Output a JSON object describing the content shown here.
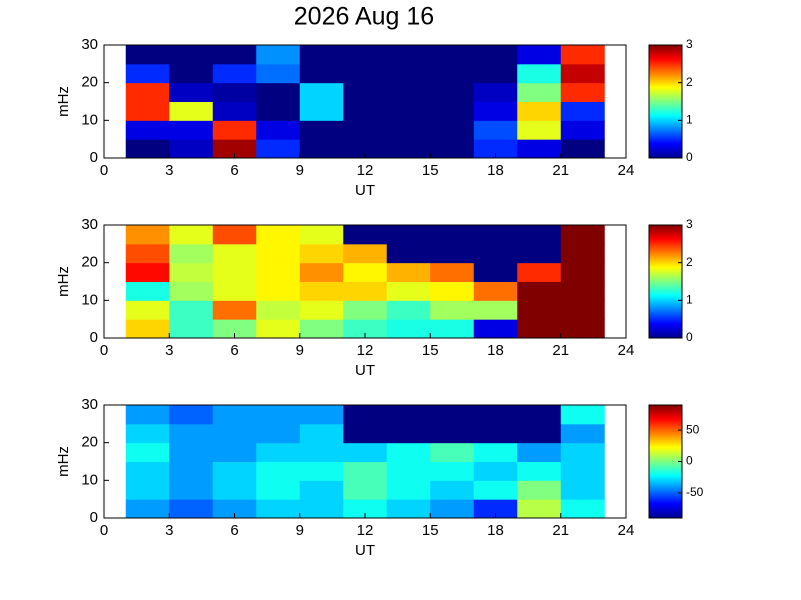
{
  "chart_data": [
    {
      "type": "heatmap",
      "title": "2026 Aug 16",
      "xlabel": "UT",
      "ylabel": "mHz",
      "xlim": [
        0,
        24
      ],
      "xticks": [
        0,
        3,
        6,
        9,
        12,
        15,
        18,
        21,
        24
      ],
      "ylim": [
        0,
        30
      ],
      "yticks": [
        0,
        10,
        20,
        30
      ],
      "clim": [
        0,
        3
      ],
      "cticks": [
        0,
        1,
        2,
        3
      ],
      "xbins": [
        1,
        3,
        5,
        7,
        9,
        11,
        13,
        15,
        17,
        19,
        21,
        23
      ],
      "ybins": [
        0,
        5,
        10,
        15,
        20,
        25,
        30
      ],
      "z": [
        [
          0,
          0.2,
          2.9,
          0.5,
          0,
          0,
          0,
          0,
          0.5,
          0.3,
          0
        ],
        [
          0.3,
          0.3,
          2.5,
          0.3,
          0,
          0,
          0,
          0,
          0.6,
          1.8,
          0.3
        ],
        [
          2.5,
          1.8,
          0.2,
          0,
          1,
          0,
          0,
          0,
          0.3,
          2,
          0.5
        ],
        [
          2.5,
          0.2,
          0.1,
          0,
          1,
          0,
          0,
          0,
          0.2,
          1.5,
          2.5
        ],
        [
          0.5,
          0,
          0.5,
          0.7,
          0,
          0,
          0,
          0,
          0,
          1.2,
          2.8
        ],
        [
          0,
          0,
          0,
          0.8,
          0,
          0,
          0,
          0,
          0,
          0.3,
          2.5
        ]
      ]
    },
    {
      "type": "heatmap",
      "xlabel": "UT",
      "ylabel": "mHz",
      "xlim": [
        0,
        24
      ],
      "xticks": [
        0,
        3,
        6,
        9,
        12,
        15,
        18,
        21,
        24
      ],
      "ylim": [
        0,
        30
      ],
      "yticks": [
        0,
        10,
        20,
        30
      ],
      "clim": [
        0,
        3
      ],
      "cticks": [
        0,
        1,
        2,
        3
      ],
      "xbins": [
        1,
        3,
        5,
        7,
        9,
        11,
        13,
        15,
        17,
        19,
        21,
        23
      ],
      "ybins": [
        0,
        5,
        10,
        15,
        20,
        25,
        30
      ],
      "z": [
        [
          2,
          1.3,
          1.5,
          1.8,
          1.5,
          1.3,
          1.2,
          1.2,
          0.3,
          3,
          3
        ],
        [
          1.8,
          1.3,
          2.3,
          1.7,
          1.8,
          1.5,
          1.3,
          1.6,
          1.6,
          3,
          3
        ],
        [
          1.2,
          1.6,
          1.8,
          1.9,
          2,
          2,
          1.8,
          1.9,
          2.3,
          3,
          3
        ],
        [
          2.6,
          1.7,
          1.8,
          1.9,
          2.2,
          1.9,
          2.1,
          2.3,
          0,
          2.5,
          3
        ],
        [
          2.4,
          1.6,
          1.8,
          1.9,
          2,
          2.1,
          0,
          0,
          0,
          0,
          3
        ],
        [
          2.2,
          1.8,
          2.4,
          1.9,
          1.8,
          0,
          0,
          0,
          0,
          0,
          3
        ]
      ]
    },
    {
      "type": "heatmap",
      "xlabel": "UT",
      "ylabel": "mHz",
      "xlim": [
        0,
        24
      ],
      "xticks": [
        0,
        3,
        6,
        9,
        12,
        15,
        18,
        21,
        24
      ],
      "ylim": [
        0,
        30
      ],
      "yticks": [
        0,
        10,
        20,
        30
      ],
      "clim": [
        -90,
        90
      ],
      "cticks": [
        -50,
        0,
        50
      ],
      "xbins": [
        1,
        3,
        5,
        7,
        9,
        11,
        13,
        15,
        17,
        19,
        21,
        23
      ],
      "ybins": [
        0,
        5,
        10,
        15,
        20,
        25,
        30
      ],
      "z": [
        [
          -40,
          -50,
          -40,
          -30,
          -30,
          -20,
          -30,
          -40,
          -60,
          10,
          -20
        ],
        [
          -30,
          -40,
          -30,
          -20,
          -30,
          -10,
          -20,
          -30,
          -20,
          0,
          -30
        ],
        [
          -30,
          -40,
          -30,
          -20,
          -20,
          -10,
          -20,
          -20,
          -30,
          -20,
          -30
        ],
        [
          -20,
          -40,
          -40,
          -30,
          -30,
          -30,
          -20,
          -10,
          -20,
          -40,
          -30
        ],
        [
          -30,
          -40,
          -40,
          -40,
          -30,
          -90,
          -90,
          -90,
          -90,
          -90,
          -40
        ],
        [
          -40,
          -50,
          -40,
          -40,
          -40,
          -90,
          -90,
          -90,
          -90,
          -90,
          -20
        ]
      ]
    }
  ]
}
